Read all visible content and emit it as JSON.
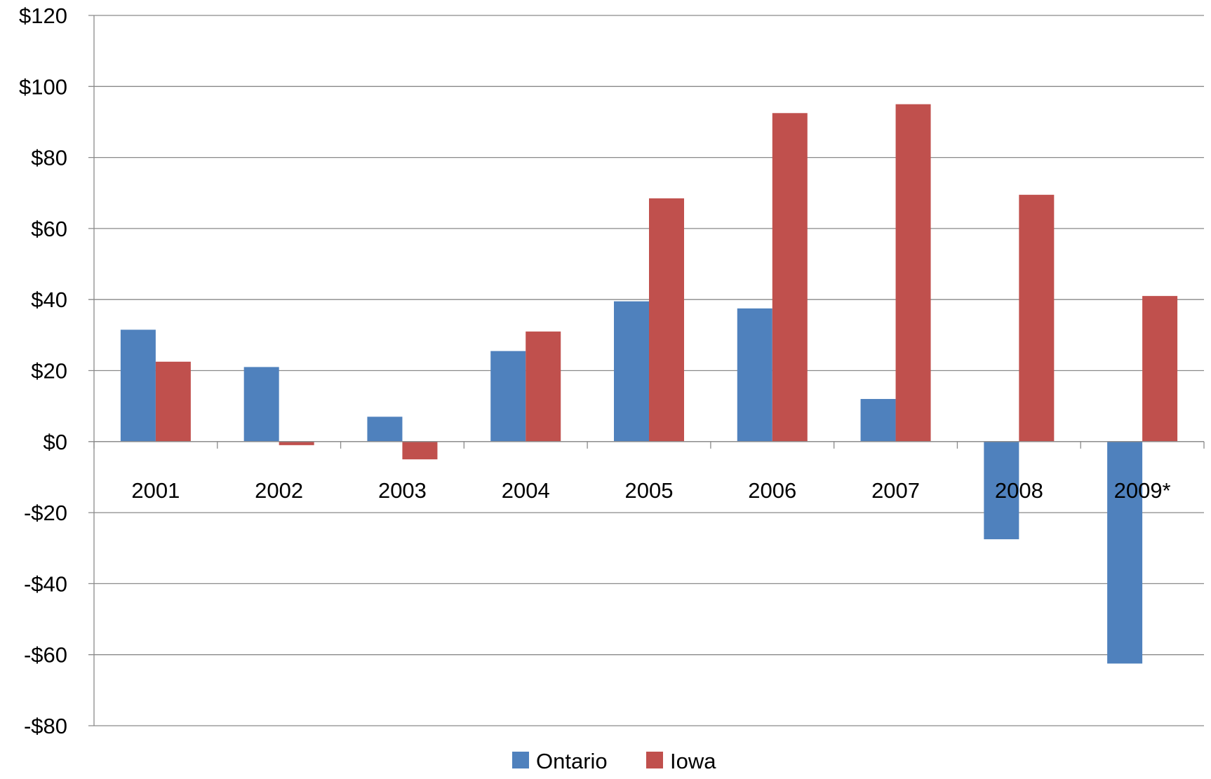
{
  "chart_data": {
    "type": "bar",
    "categories": [
      "2001",
      "2002",
      "2003",
      "2004",
      "2005",
      "2006",
      "2007",
      "2008",
      "2009*"
    ],
    "series": [
      {
        "name": "Ontario",
        "color": "#4F81BD",
        "values": [
          31.5,
          21,
          7,
          25.5,
          39.5,
          37.5,
          12,
          -27.5,
          -62.5
        ]
      },
      {
        "name": "Iowa",
        "color": "#C0504D",
        "values": [
          22.5,
          -1,
          -5,
          31,
          68.5,
          92.5,
          95,
          69.5,
          41
        ]
      }
    ],
    "ylim": [
      -80,
      120
    ],
    "yticks": [
      120,
      100,
      80,
      60,
      40,
      20,
      0,
      -20,
      -40,
      -60,
      -80
    ],
    "ytick_labels": [
      "$120",
      "$100",
      "$80",
      "$60",
      "$40",
      "$20",
      "$0",
      "-$20",
      "-$40",
      "-$60",
      "-$80"
    ],
    "grid": true,
    "legend_position": "bottom-center"
  }
}
